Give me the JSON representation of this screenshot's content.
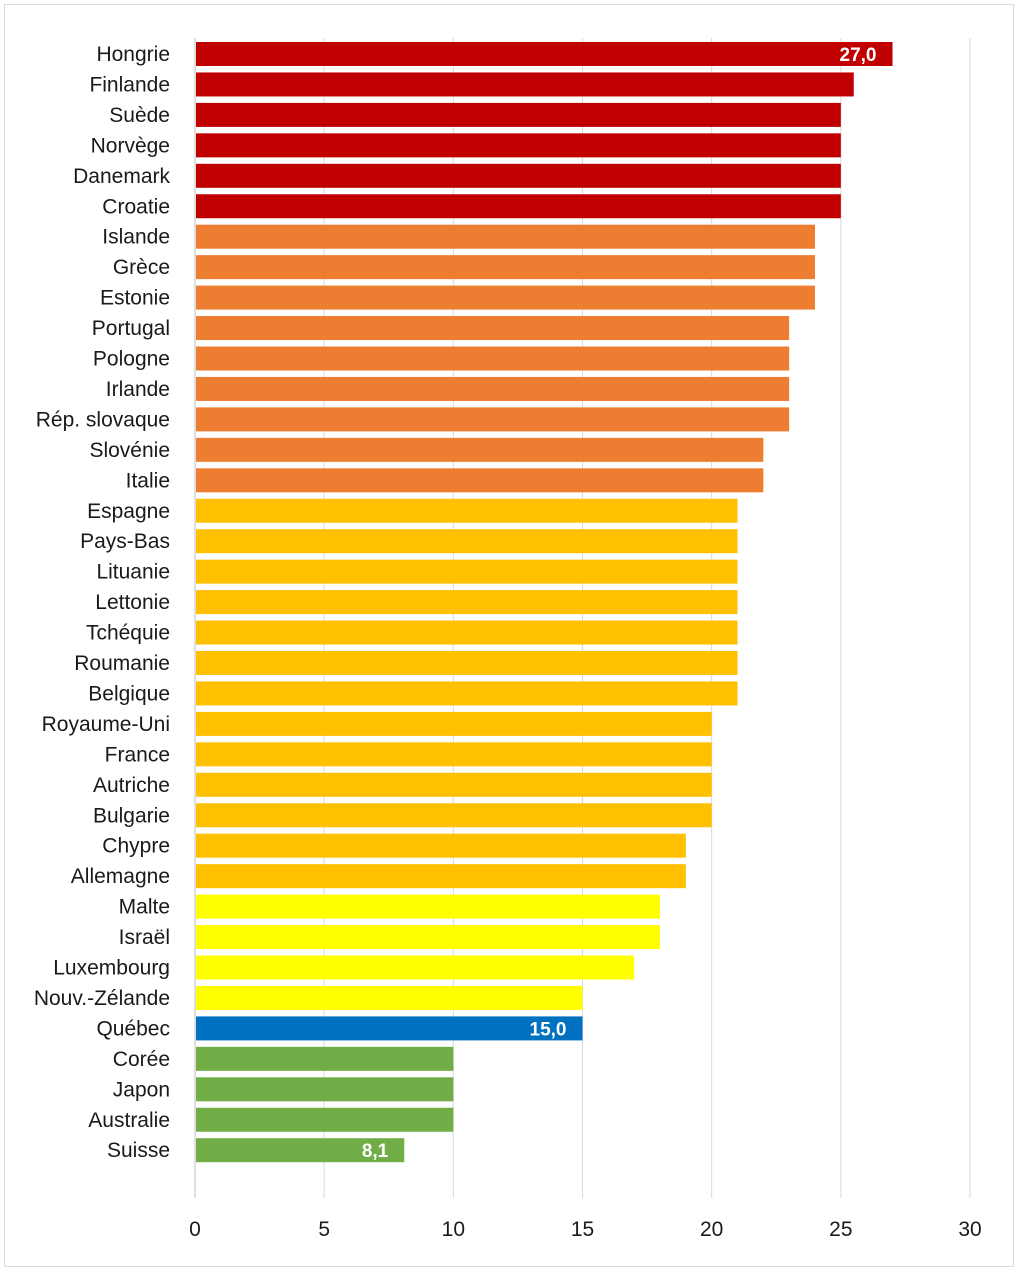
{
  "chart_data": {
    "type": "bar",
    "orientation": "horizontal",
    "title": "",
    "xlabel": "",
    "ylabel": "",
    "xlim": [
      0,
      30
    ],
    "x_ticks": [
      "0",
      "5",
      "10",
      "15",
      "20",
      "25",
      "30"
    ],
    "grid": "vertical",
    "legend": "none",
    "colors": {
      "red": "#c00000",
      "orange": "#ed7d31",
      "amber": "#ffc000",
      "yellow": "#ffff00",
      "blue": "#0070c0",
      "green": "#70ad47"
    },
    "categories": [
      "Hongrie",
      "Finlande",
      "Suède",
      "Norvège",
      "Danemark",
      "Croatie",
      "Islande",
      "Grèce",
      "Estonie",
      "Portugal",
      "Pologne",
      "Irlande",
      "Rép. slovaque",
      "Slovénie",
      "Italie",
      "Espagne",
      "Pays-Bas",
      "Lituanie",
      "Lettonie",
      "Tchéquie",
      "Roumanie",
      "Belgique",
      "Royaume-Uni",
      "France",
      "Autriche",
      "Bulgarie",
      "Chypre",
      "Allemagne",
      "Malte",
      "Israël",
      "Luxembourg",
      "Nouv.-Zélande",
      "Québec",
      "Corée",
      "Japon",
      "Australie",
      "Suisse"
    ],
    "values": [
      27,
      25.5,
      25,
      25,
      25,
      25,
      24,
      24,
      24,
      23,
      23,
      23,
      23,
      22,
      22,
      21,
      21,
      21,
      21,
      21,
      21,
      21,
      20,
      20,
      20,
      20,
      19,
      19,
      18,
      18,
      17,
      15,
      15,
      10,
      10,
      10,
      8.1
    ],
    "bar_colors": [
      "red",
      "red",
      "red",
      "red",
      "red",
      "red",
      "orange",
      "orange",
      "orange",
      "orange",
      "orange",
      "orange",
      "orange",
      "orange",
      "orange",
      "amber",
      "amber",
      "amber",
      "amber",
      "amber",
      "amber",
      "amber",
      "amber",
      "amber",
      "amber",
      "amber",
      "amber",
      "amber",
      "yellow",
      "yellow",
      "yellow",
      "yellow",
      "blue",
      "green",
      "green",
      "green",
      "green"
    ],
    "data_labels": [
      {
        "category": "Hongrie",
        "text": "27,0"
      },
      {
        "category": "Québec",
        "text": "15,0"
      },
      {
        "category": "Suisse",
        "text": "8,1"
      }
    ]
  }
}
